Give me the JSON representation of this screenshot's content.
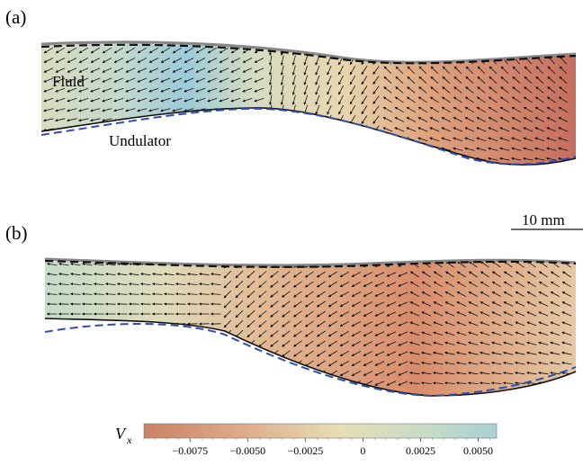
{
  "panels": [
    {
      "label": "(a)",
      "fluid_label": "Fluid",
      "undulator_label": "Undulator"
    },
    {
      "label": "(b)"
    }
  ],
  "scale_bar": {
    "label": "10 mm"
  },
  "colorbar": {
    "variable": "V",
    "subscript": "x",
    "range": [
      -0.0095,
      0.0058
    ],
    "ticks": [
      "−0.0075",
      "−0.0050",
      "−0.0025",
      "0",
      "0.0025",
      "0.0050"
    ],
    "tick_values": [
      -0.0075,
      -0.005,
      -0.0025,
      0,
      0.0025,
      0.005
    ],
    "colors": {
      "negative": "#c98364",
      "neutral": "#e6deb4",
      "positive": "#a7d0d6"
    }
  },
  "colors": {
    "undulator_line": "#111111",
    "reference_dashed_blue": "#2f4fb4",
    "reference_dashed_black": "#111111",
    "arrows": "#111111"
  }
}
